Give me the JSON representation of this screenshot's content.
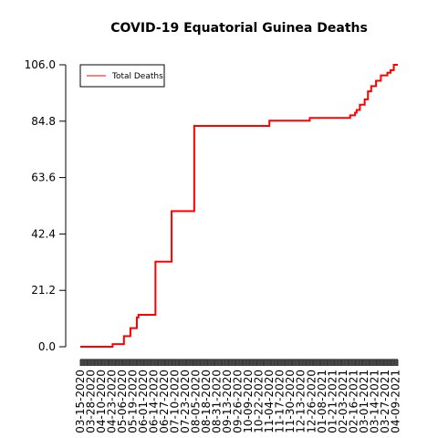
{
  "chart_data": {
    "type": "line",
    "title": "COVID-19 Equatorial Guinea Deaths",
    "xlabel": "",
    "ylabel": "",
    "ylim": [
      0,
      106
    ],
    "yticks": [
      0.0,
      21.2,
      42.4,
      63.6,
      84.8,
      106.0
    ],
    "ytick_labels": [
      "0.0",
      "21.2",
      "42.4",
      "63.6",
      "84.8",
      "106.0"
    ],
    "x_start_date": "2020-03-15",
    "x_end_date": "2021-04-12",
    "xtick_labels": [
      "03-15-2020",
      "03-28-2020",
      "04-10-2020",
      "04-23-2020",
      "05-06-2020",
      "05-19-2020",
      "06-01-2020",
      "06-14-2020",
      "06-27-2020",
      "07-10-2020",
      "07-23-2020",
      "08-05-2020",
      "08-18-2020",
      "08-31-2020",
      "09-13-2020",
      "09-26-2020",
      "10-09-2020",
      "10-22-2020",
      "11-04-2020",
      "11-17-2020",
      "11-30-2020",
      "12-13-2020",
      "12-26-2020",
      "01-08-2021",
      "01-21-2021",
      "02-03-2021",
      "02-16-2021",
      "03-01-2021",
      "03-14-2021",
      "03-27-2021",
      "04-09-2021"
    ],
    "grid": false,
    "legend_position": "top-left",
    "series": [
      {
        "name": "Total Deaths",
        "color": "#ff0000",
        "step": true,
        "points": [
          [
            "2020-03-15",
            0
          ],
          [
            "2020-04-24",
            1
          ],
          [
            "2020-05-08",
            4
          ],
          [
            "2020-05-16",
            7
          ],
          [
            "2020-05-24",
            11
          ],
          [
            "2020-05-26",
            12
          ],
          [
            "2020-06-16",
            32
          ],
          [
            "2020-07-06",
            51
          ],
          [
            "2020-08-03",
            83
          ],
          [
            "2020-11-04",
            85
          ],
          [
            "2020-12-24",
            86
          ],
          [
            "2021-02-12",
            87
          ],
          [
            "2021-02-18",
            88
          ],
          [
            "2021-02-20",
            89
          ],
          [
            "2021-02-24",
            91
          ],
          [
            "2021-03-02",
            93
          ],
          [
            "2021-03-06",
            96
          ],
          [
            "2021-03-10",
            98
          ],
          [
            "2021-03-16",
            100
          ],
          [
            "2021-03-22",
            102
          ],
          [
            "2021-03-30",
            103
          ],
          [
            "2021-04-03",
            104
          ],
          [
            "2021-04-07",
            106
          ],
          [
            "2021-04-12",
            106
          ]
        ]
      }
    ]
  }
}
